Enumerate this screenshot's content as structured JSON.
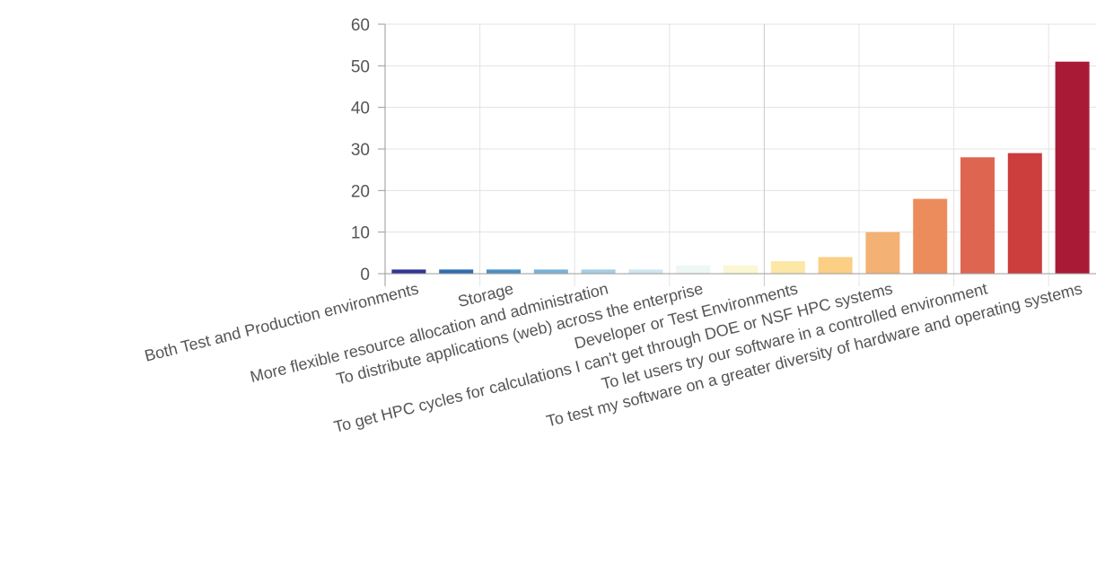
{
  "chart_data": {
    "type": "bar",
    "categories": [
      "Both Test and Production environments",
      "",
      "Storage",
      "",
      "More flexible resource allocation and administration",
      "",
      "To distribute applications (web) across the enterprise",
      "",
      "Developer or Test Environments",
      "",
      "To get HPC cycles for calculations I can't get through DOE or NSF HPC systems",
      "",
      "To let users try our software in a controlled environment",
      "",
      "To test my software on a greater diversity of hardware and operating systems"
    ],
    "values": [
      1,
      1,
      1,
      1,
      1,
      1,
      2,
      2,
      3,
      4,
      10,
      18,
      28,
      29,
      51
    ],
    "colors": [
      "#313695",
      "#2f6db0",
      "#4a90c4",
      "#79b1d6",
      "#a5cde3",
      "#cfe6f0",
      "#eef7f5",
      "#fbf6d3",
      "#fde7a6",
      "#fbcf84",
      "#f3b273",
      "#ec8c5c",
      "#de6651",
      "#cc3d3e",
      "#a91a37"
    ],
    "yticks": [
      0,
      10,
      20,
      30,
      40,
      50,
      60
    ],
    "ylim": [
      0,
      60
    ],
    "title": "",
    "xlabel": "",
    "ylabel": "",
    "grid": true,
    "legend": "none"
  }
}
